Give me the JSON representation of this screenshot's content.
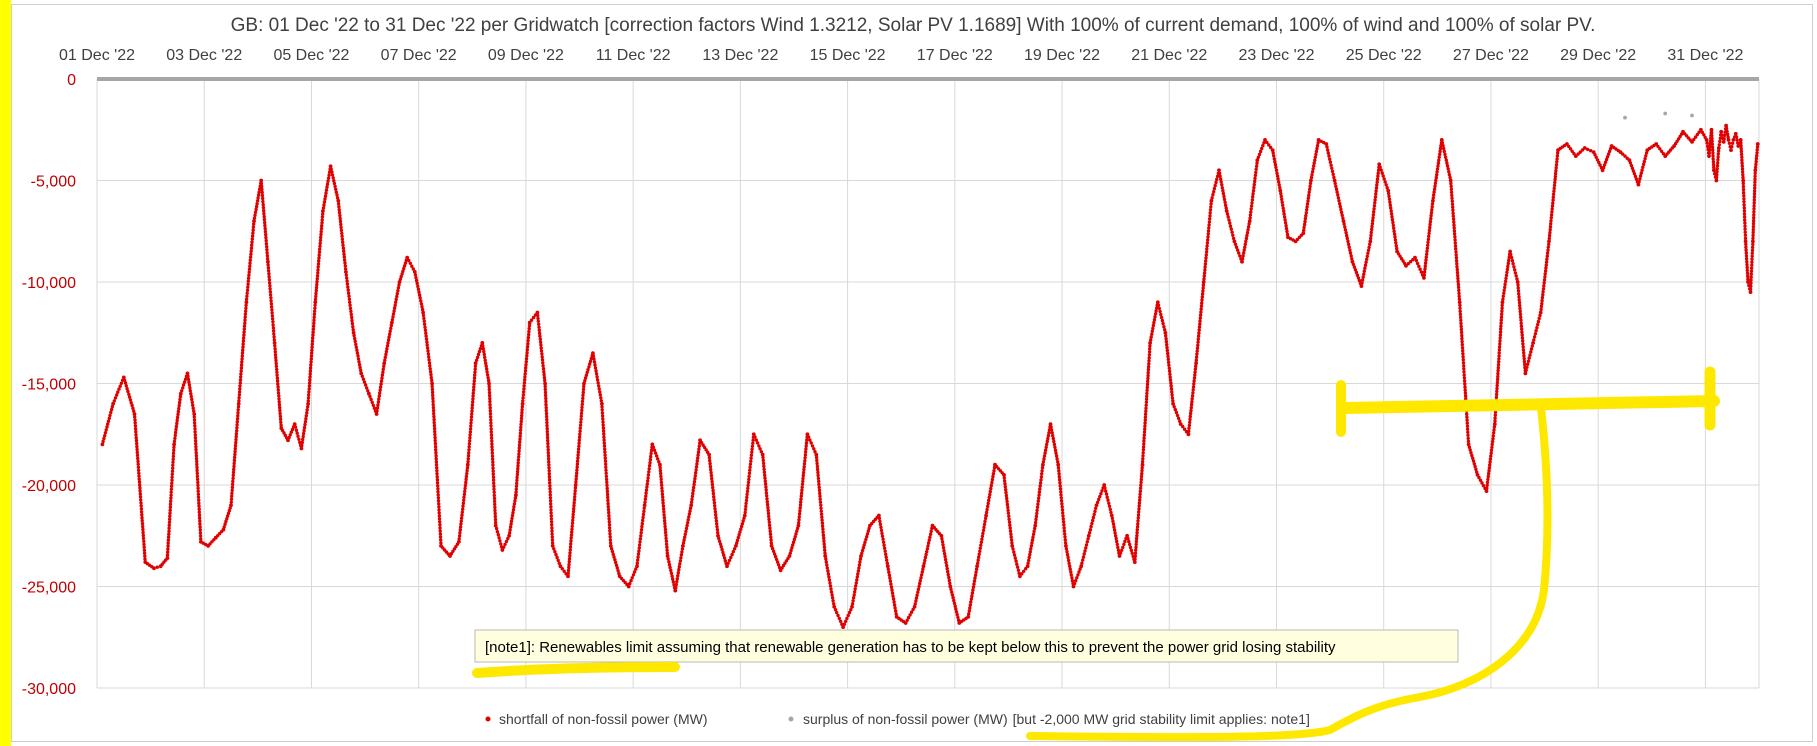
{
  "chart_data": {
    "type": "scatter",
    "title": "GB: 01 Dec '22 to 31 Dec '22 per Gridwatch [correction factors Wind 1.3212, Solar PV 1.1689]   With 100% of current demand, 100% of wind and 100% of solar PV.",
    "x_range": [
      "2022-12-01",
      "2023-01-01"
    ],
    "x_ticks": [
      "01 Dec '22",
      "03 Dec '22",
      "05 Dec '22",
      "07 Dec '22",
      "09 Dec '22",
      "11 Dec '22",
      "13 Dec '22",
      "15 Dec '22",
      "17 Dec '22",
      "19 Dec '22",
      "21 Dec '22",
      "23 Dec '22",
      "25 Dec '22",
      "27 Dec '22",
      "29 Dec '22",
      "31 Dec '22"
    ],
    "y_ticks": [
      "0",
      "-5,000",
      "-10,000",
      "-15,000",
      "-20,000",
      "-25,000",
      "-30,000"
    ],
    "y_tick_values": [
      0,
      -5000,
      -10000,
      -15000,
      -20000,
      -25000,
      -30000
    ],
    "ylim": [
      -30000,
      0
    ],
    "grid": true,
    "series": [
      {
        "name": "shortfall of non-fossil power (MW)",
        "color": "#e00000",
        "points": [
          [
            "2022-12-01",
            -18000
          ],
          [
            "2022-12-01",
            -16000
          ],
          [
            "2022-12-01",
            -14700
          ],
          [
            "2022-12-01",
            -16500
          ],
          [
            "2022-12-01",
            -23800
          ],
          [
            "2022-12-02",
            -24100
          ],
          [
            "2022-12-02",
            -24000
          ],
          [
            "2022-12-02",
            -23600
          ],
          [
            "2022-12-02",
            -18000
          ],
          [
            "2022-12-02",
            -15500
          ],
          [
            "2022-12-02",
            -14500
          ],
          [
            "2022-12-02",
            -16500
          ],
          [
            "2022-12-02",
            -22800
          ],
          [
            "2022-12-03",
            -23000
          ],
          [
            "2022-12-03",
            -22600
          ],
          [
            "2022-12-03",
            -22200
          ],
          [
            "2022-12-03",
            -21000
          ],
          [
            "2022-12-03",
            -16000
          ],
          [
            "2022-12-03",
            -11000
          ],
          [
            "2022-12-03",
            -7000
          ],
          [
            "2022-12-04",
            -5000
          ],
          [
            "2022-12-04",
            -9000
          ],
          [
            "2022-12-04",
            -13000
          ],
          [
            "2022-12-04",
            -17200
          ],
          [
            "2022-12-04",
            -17800
          ],
          [
            "2022-12-04",
            -17000
          ],
          [
            "2022-12-04",
            -18200
          ],
          [
            "2022-12-04",
            -16000
          ],
          [
            "2022-12-05",
            -11000
          ],
          [
            "2022-12-05",
            -6500
          ],
          [
            "2022-12-05",
            -4300
          ],
          [
            "2022-12-05",
            -6000
          ],
          [
            "2022-12-05",
            -9500
          ],
          [
            "2022-12-05",
            -12500
          ],
          [
            "2022-12-05",
            -14500
          ],
          [
            "2022-12-06",
            -15500
          ],
          [
            "2022-12-06",
            -16500
          ],
          [
            "2022-12-06",
            -14000
          ],
          [
            "2022-12-06",
            -12000
          ],
          [
            "2022-12-06",
            -10000
          ],
          [
            "2022-12-06",
            -8800
          ],
          [
            "2022-12-06",
            -9500
          ],
          [
            "2022-12-07",
            -11500
          ],
          [
            "2022-12-07",
            -15000
          ],
          [
            "2022-12-07",
            -23000
          ],
          [
            "2022-12-07",
            -23500
          ],
          [
            "2022-12-07",
            -22800
          ],
          [
            "2022-12-07",
            -19000
          ],
          [
            "2022-12-08",
            -14000
          ],
          [
            "2022-12-08",
            -13000
          ],
          [
            "2022-12-08",
            -15000
          ],
          [
            "2022-12-08",
            -22000
          ],
          [
            "2022-12-08",
            -23200
          ],
          [
            "2022-12-08",
            -22500
          ],
          [
            "2022-12-08",
            -20500
          ],
          [
            "2022-12-08",
            -16000
          ],
          [
            "2022-12-09",
            -12000
          ],
          [
            "2022-12-09",
            -11500
          ],
          [
            "2022-12-09",
            -15000
          ],
          [
            "2022-12-09",
            -23000
          ],
          [
            "2022-12-09",
            -24000
          ],
          [
            "2022-12-09",
            -24500
          ],
          [
            "2022-12-09",
            -20000
          ],
          [
            "2022-12-10",
            -15000
          ],
          [
            "2022-12-10",
            -13500
          ],
          [
            "2022-12-10",
            -16000
          ],
          [
            "2022-12-10",
            -23000
          ],
          [
            "2022-12-10",
            -24500
          ],
          [
            "2022-12-10",
            -25000
          ],
          [
            "2022-12-11",
            -24000
          ],
          [
            "2022-12-11",
            -21000
          ],
          [
            "2022-12-11",
            -18000
          ],
          [
            "2022-12-11",
            -19000
          ],
          [
            "2022-12-11",
            -23500
          ],
          [
            "2022-12-11",
            -25200
          ],
          [
            "2022-12-11",
            -23000
          ],
          [
            "2022-12-12",
            -21000
          ],
          [
            "2022-12-12",
            -17800
          ],
          [
            "2022-12-12",
            -18500
          ],
          [
            "2022-12-12",
            -22500
          ],
          [
            "2022-12-12",
            -24000
          ],
          [
            "2022-12-12",
            -23000
          ],
          [
            "2022-12-13",
            -21500
          ],
          [
            "2022-12-13",
            -17500
          ],
          [
            "2022-12-13",
            -18500
          ],
          [
            "2022-12-13",
            -23000
          ],
          [
            "2022-12-13",
            -24200
          ],
          [
            "2022-12-13",
            -23500
          ],
          [
            "2022-12-14",
            -22000
          ],
          [
            "2022-12-14",
            -17500
          ],
          [
            "2022-12-14",
            -18500
          ],
          [
            "2022-12-14",
            -23500
          ],
          [
            "2022-12-14",
            -26000
          ],
          [
            "2022-12-14",
            -27000
          ],
          [
            "2022-12-15",
            -26000
          ],
          [
            "2022-12-15",
            -23500
          ],
          [
            "2022-12-15",
            -22000
          ],
          [
            "2022-12-15",
            -21500
          ],
          [
            "2022-12-15",
            -24000
          ],
          [
            "2022-12-15",
            -26500
          ],
          [
            "2022-12-16",
            -26800
          ],
          [
            "2022-12-16",
            -26000
          ],
          [
            "2022-12-16",
            -24000
          ],
          [
            "2022-12-16",
            -22000
          ],
          [
            "2022-12-16",
            -22500
          ],
          [
            "2022-12-16",
            -25000
          ],
          [
            "2022-12-17",
            -26800
          ],
          [
            "2022-12-17",
            -26500
          ],
          [
            "2022-12-17",
            -24000
          ],
          [
            "2022-12-17",
            -21500
          ],
          [
            "2022-12-17",
            -19000
          ],
          [
            "2022-12-17",
            -19500
          ],
          [
            "2022-12-18",
            -23000
          ],
          [
            "2022-12-18",
            -24500
          ],
          [
            "2022-12-18",
            -24000
          ],
          [
            "2022-12-18",
            -22000
          ],
          [
            "2022-12-18",
            -19000
          ],
          [
            "2022-12-18",
            -17000
          ],
          [
            "2022-12-18",
            -19000
          ],
          [
            "2022-12-19",
            -23000
          ],
          [
            "2022-12-19",
            -25000
          ],
          [
            "2022-12-19",
            -24000
          ],
          [
            "2022-12-19",
            -22500
          ],
          [
            "2022-12-19",
            -21000
          ],
          [
            "2022-12-19",
            -20000
          ],
          [
            "2022-12-19",
            -21500
          ],
          [
            "2022-12-20",
            -23500
          ],
          [
            "2022-12-20",
            -22500
          ],
          [
            "2022-12-20",
            -23800
          ],
          [
            "2022-12-20",
            -19000
          ],
          [
            "2022-12-20",
            -13000
          ],
          [
            "2022-12-20",
            -11000
          ],
          [
            "2022-12-20",
            -12500
          ],
          [
            "2022-12-21",
            -16000
          ],
          [
            "2022-12-21",
            -17000
          ],
          [
            "2022-12-21",
            -17500
          ],
          [
            "2022-12-21",
            -14000
          ],
          [
            "2022-12-21",
            -10000
          ],
          [
            "2022-12-21",
            -6000
          ],
          [
            "2022-12-21",
            -4500
          ],
          [
            "2022-12-22",
            -6500
          ],
          [
            "2022-12-22",
            -8000
          ],
          [
            "2022-12-22",
            -9000
          ],
          [
            "2022-12-22",
            -7000
          ],
          [
            "2022-12-22",
            -4000
          ],
          [
            "2022-12-22",
            -3000
          ],
          [
            "2022-12-22",
            -3500
          ],
          [
            "2022-12-23",
            -5500
          ],
          [
            "2022-12-23",
            -7800
          ],
          [
            "2022-12-23",
            -8000
          ],
          [
            "2022-12-23",
            -7600
          ],
          [
            "2022-12-23",
            -5000
          ],
          [
            "2022-12-23",
            -3000
          ],
          [
            "2022-12-23",
            -3200
          ],
          [
            "2022-12-24",
            -5000
          ],
          [
            "2022-12-24",
            -7000
          ],
          [
            "2022-12-24",
            -9000
          ],
          [
            "2022-12-24",
            -10200
          ],
          [
            "2022-12-24",
            -8000
          ],
          [
            "2022-12-24",
            -4200
          ],
          [
            "2022-12-25",
            -5500
          ],
          [
            "2022-12-25",
            -8500
          ],
          [
            "2022-12-25",
            -9200
          ],
          [
            "2022-12-25",
            -8800
          ],
          [
            "2022-12-25",
            -9800
          ],
          [
            "2022-12-25",
            -6000
          ],
          [
            "2022-12-26",
            -3000
          ],
          [
            "2022-12-26",
            -5000
          ],
          [
            "2022-12-26",
            -11000
          ],
          [
            "2022-12-26",
            -18000
          ],
          [
            "2022-12-26",
            -19500
          ],
          [
            "2022-12-26",
            -20300
          ],
          [
            "2022-12-27",
            -17000
          ],
          [
            "2022-12-27",
            -11000
          ],
          [
            "2022-12-27",
            -8500
          ],
          [
            "2022-12-27",
            -10000
          ],
          [
            "2022-12-27",
            -14500
          ],
          [
            "2022-12-27",
            -13000
          ],
          [
            "2022-12-27",
            -11500
          ],
          [
            "2022-12-28",
            -8000
          ],
          [
            "2022-12-28",
            -3500
          ],
          [
            "2022-12-28",
            -3200
          ],
          [
            "2022-12-28",
            -3800
          ],
          [
            "2022-12-28",
            -3400
          ],
          [
            "2022-12-28",
            -3600
          ],
          [
            "2022-12-29",
            -4500
          ],
          [
            "2022-12-29",
            -3300
          ],
          [
            "2022-12-29",
            -3600
          ],
          [
            "2022-12-29",
            -4000
          ],
          [
            "2022-12-29",
            -5200
          ],
          [
            "2022-12-29",
            -3500
          ],
          [
            "2022-12-30",
            -3200
          ],
          [
            "2022-12-30",
            -3800
          ],
          [
            "2022-12-30",
            -3300
          ],
          [
            "2022-12-30",
            -2600
          ],
          [
            "2022-12-30",
            -3100
          ],
          [
            "2022-12-30",
            -2500
          ],
          [
            "2022-12-31",
            -3000
          ],
          [
            "2022-12-31",
            -3800
          ],
          [
            "2022-12-31",
            -2500
          ],
          [
            "2022-12-31",
            -4500
          ],
          [
            "2022-12-31",
            -5000
          ],
          [
            "2022-12-31",
            -3400
          ],
          [
            "2022-12-31",
            -2600
          ],
          [
            "2022-12-31",
            -3100
          ],
          [
            "2022-12-31",
            -2300
          ],
          [
            "2022-12-31",
            -3000
          ],
          [
            "2022-12-31",
            -3500
          ],
          [
            "2022-12-31",
            -3000
          ],
          [
            "2022-12-31",
            -2700
          ],
          [
            "2022-12-31",
            -3300
          ],
          [
            "2022-12-31",
            -3000
          ],
          [
            "2022-12-31",
            -5000
          ],
          [
            "2022-12-31",
            -8000
          ],
          [
            "2022-12-31",
            -10000
          ],
          [
            "2022-12-31",
            -10500
          ],
          [
            "2022-12-31",
            -8000
          ],
          [
            "2022-12-31",
            -4500
          ],
          [
            "2022-12-31",
            -3200
          ]
        ]
      },
      {
        "name": "surplus of non-fossil power (MW)",
        "color": "#a6a6a6",
        "points": [
          [
            "2022-12-29",
            -1900
          ],
          [
            "2022-12-30",
            -1700
          ],
          [
            "2022-12-30",
            -1800
          ]
        ]
      }
    ],
    "legend_position": "bottom",
    "legend_note": "[but -2,000 MW grid stability limit applies: note1]",
    "annotation": "[note1]: Renewables limit assuming that renewable generation has to be kept below this to prevent the power grid losing stability"
  },
  "colors": {
    "shortfall": "#e00000",
    "surplus": "#a6a6a6",
    "highlight": "#ffe800",
    "grid": "#d9d9d9",
    "note_bg": "#ffffe0"
  }
}
